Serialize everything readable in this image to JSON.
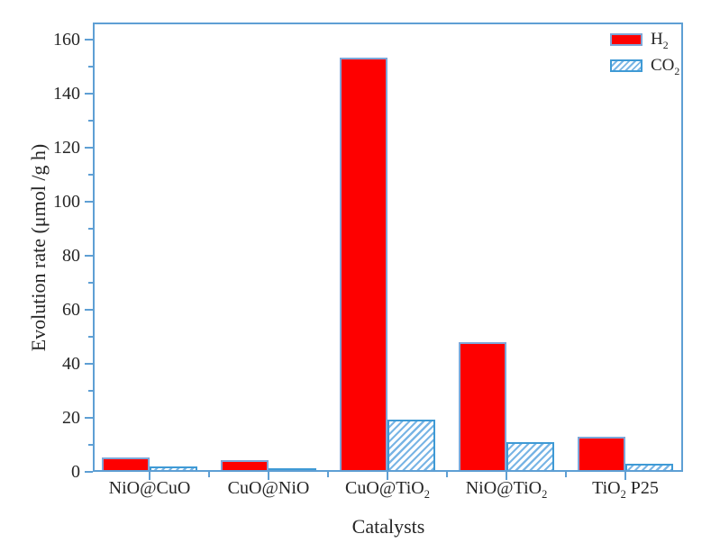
{
  "chart_data": {
    "type": "bar",
    "title": "",
    "xlabel": "Catalysts",
    "ylabel": "Evolution rate (μmol /g h)",
    "categories": [
      "NiO@CuO",
      "CuO@NiO",
      "CuO@TiO2",
      "NiO@TiO2",
      "TiO2 P25"
    ],
    "categories_parts": [
      [
        {
          "t": "NiO@CuO"
        }
      ],
      [
        {
          "t": "CuO@NiO"
        }
      ],
      [
        {
          "t": "CuO@TiO"
        },
        {
          "t": "2",
          "sub": true
        }
      ],
      [
        {
          "t": "NiO@TiO"
        },
        {
          "t": "2",
          "sub": true
        }
      ],
      [
        {
          "t": "TiO"
        },
        {
          "t": "2",
          "sub": true
        },
        {
          "t": " P25"
        }
      ]
    ],
    "series": [
      {
        "name": "H2",
        "name_parts": [
          {
            "t": "H"
          },
          {
            "t": "2",
            "sub": true
          }
        ],
        "style": "solid-red",
        "values": [
          5.5,
          4.5,
          153.5,
          48,
          13
        ]
      },
      {
        "name": "CO2",
        "name_parts": [
          {
            "t": "CO"
          },
          {
            "t": "2",
            "sub": true
          }
        ],
        "style": "hatched-blue",
        "values": [
          2,
          1.5,
          19.5,
          11,
          3
        ]
      }
    ],
    "ylim": [
      0,
      160
    ],
    "y_major_ticks": [
      0,
      20,
      40,
      60,
      80,
      100,
      120,
      140,
      160
    ],
    "y_major_tick_step": 20,
    "y_minor_tick_step": 10,
    "grid": false,
    "legend_position": "top-right-inside",
    "colors": {
      "h2_fill": "#fe0000",
      "h2_border": "#7ea6d8",
      "co2_hatch": "#79b5e5",
      "co2_border": "#3f9ad5",
      "axis": "#5e9fd4",
      "text": "#262626",
      "background": "#ffffff"
    }
  }
}
